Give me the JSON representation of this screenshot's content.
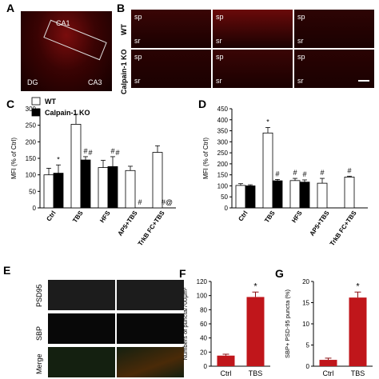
{
  "panels": {
    "A": {
      "letter": "A",
      "labels": {
        "ca1": "CA1",
        "dg": "DG",
        "ca3": "CA3"
      }
    },
    "B": {
      "letter": "B",
      "rows": [
        "WT",
        "Calpain-1 KO"
      ],
      "layer_top": "sp",
      "layer_bottom": "sr"
    },
    "E": {
      "letter": "E",
      "rows": [
        "PSD95",
        "SBP",
        "Merge"
      ]
    }
  },
  "chart_data": [
    {
      "id": "C",
      "letter": "C",
      "type": "bar",
      "categories": [
        "Ctrl",
        "TBS",
        "HFS",
        "AP5+TBS",
        "TrkB FC+TBS"
      ],
      "series": [
        {
          "name": "WT",
          "color": "#ffffff",
          "values": [
            100,
            253,
            122,
            113,
            168
          ],
          "errors": [
            20,
            30,
            22,
            13,
            20
          ]
        },
        {
          "name": "Calpain-1 KO",
          "color": "#000000",
          "values": [
            105,
            145,
            125,
            null,
            null
          ],
          "errors": [
            25,
            10,
            30,
            null,
            null
          ]
        }
      ],
      "annotations": [
        [
          "",
          "*"
        ],
        [
          "",
          "#"
        ],
        [
          "",
          "#"
        ],
        [
          "",
          "#"
        ],
        [
          "",
          "#@"
        ]
      ],
      "kannots": [
        [
          "",
          ""
        ],
        [
          "",
          "#"
        ],
        [
          "",
          "#"
        ],
        [
          "",
          ""
        ],
        [
          "",
          ""
        ]
      ],
      "ylabel": "MFI (% of Ctrl)",
      "ylim": [
        0,
        300
      ],
      "yticks": [
        0,
        50,
        100,
        150,
        200,
        250,
        300
      ],
      "legend": "top-left"
    },
    {
      "id": "D",
      "letter": "D",
      "type": "bar",
      "categories": [
        "Ctrl",
        "TBS",
        "HFS",
        "AP5+TBS",
        "TrkB FC+TBS"
      ],
      "series": [
        {
          "name": "",
          "color": "#ffffff",
          "values": [
            102,
            340,
            124,
            112,
            140
          ],
          "errors": [
            8,
            25,
            10,
            22,
            4
          ]
        },
        {
          "name": "",
          "color": "#000000",
          "values": [
            100,
            123,
            117,
            null,
            null
          ],
          "errors": [
            5,
            6,
            10,
            null,
            null
          ]
        }
      ],
      "annotations": [
        [
          "",
          ""
        ],
        [
          "*",
          "#"
        ],
        [
          "#",
          "#"
        ],
        [
          "#",
          ""
        ],
        [
          "#",
          ""
        ]
      ],
      "ylabel": "MFI (% of Ctrl)",
      "ylim": [
        0,
        450
      ],
      "yticks": [
        0,
        50,
        100,
        150,
        200,
        250,
        300,
        350,
        400,
        450
      ]
    },
    {
      "id": "F",
      "letter": "F",
      "type": "bar",
      "categories": [
        "Ctrl",
        "TBS"
      ],
      "values": [
        15,
        98
      ],
      "errors": [
        2,
        7
      ],
      "color": "#c0161b",
      "annotations": [
        "",
        "*"
      ],
      "ylabel": "Numbers of puncta/700μm²",
      "ylim": [
        0,
        120
      ],
      "yticks": [
        0,
        20,
        40,
        60,
        80,
        100,
        120
      ]
    },
    {
      "id": "G",
      "letter": "G",
      "type": "bar",
      "categories": [
        "Ctrl",
        "TBS"
      ],
      "values": [
        1.5,
        16.2
      ],
      "errors": [
        0.4,
        1.3
      ],
      "color": "#c0161b",
      "annotations": [
        "",
        "*"
      ],
      "ylabel": "SBP+ PSD-95 puncta (%)",
      "ylim": [
        0,
        20
      ],
      "yticks": [
        0,
        5,
        10,
        15,
        20
      ]
    }
  ]
}
